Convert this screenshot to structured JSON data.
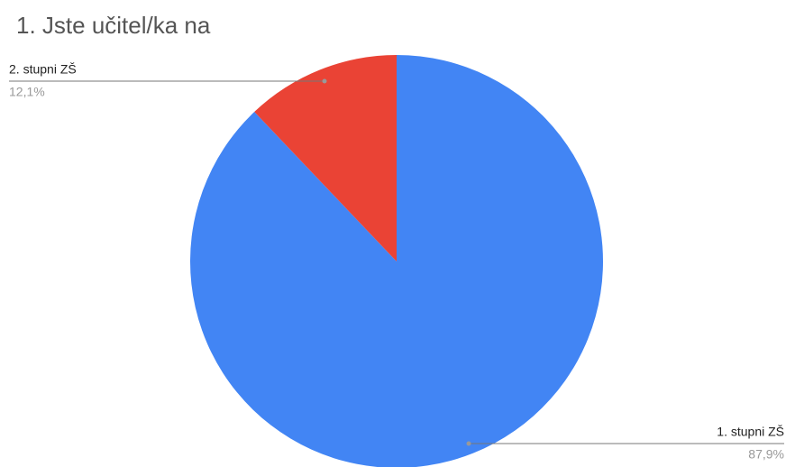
{
  "chart_data": {
    "type": "pie",
    "title": "1. Jste učitel/ka na",
    "categories": [
      "1. stupni ZŠ",
      "2. stupni ZŠ"
    ],
    "values": [
      87.9,
      12.1
    ],
    "value_labels": [
      "87,9%",
      "12,1%"
    ],
    "colors": [
      "#4285f4",
      "#ea4335"
    ]
  }
}
